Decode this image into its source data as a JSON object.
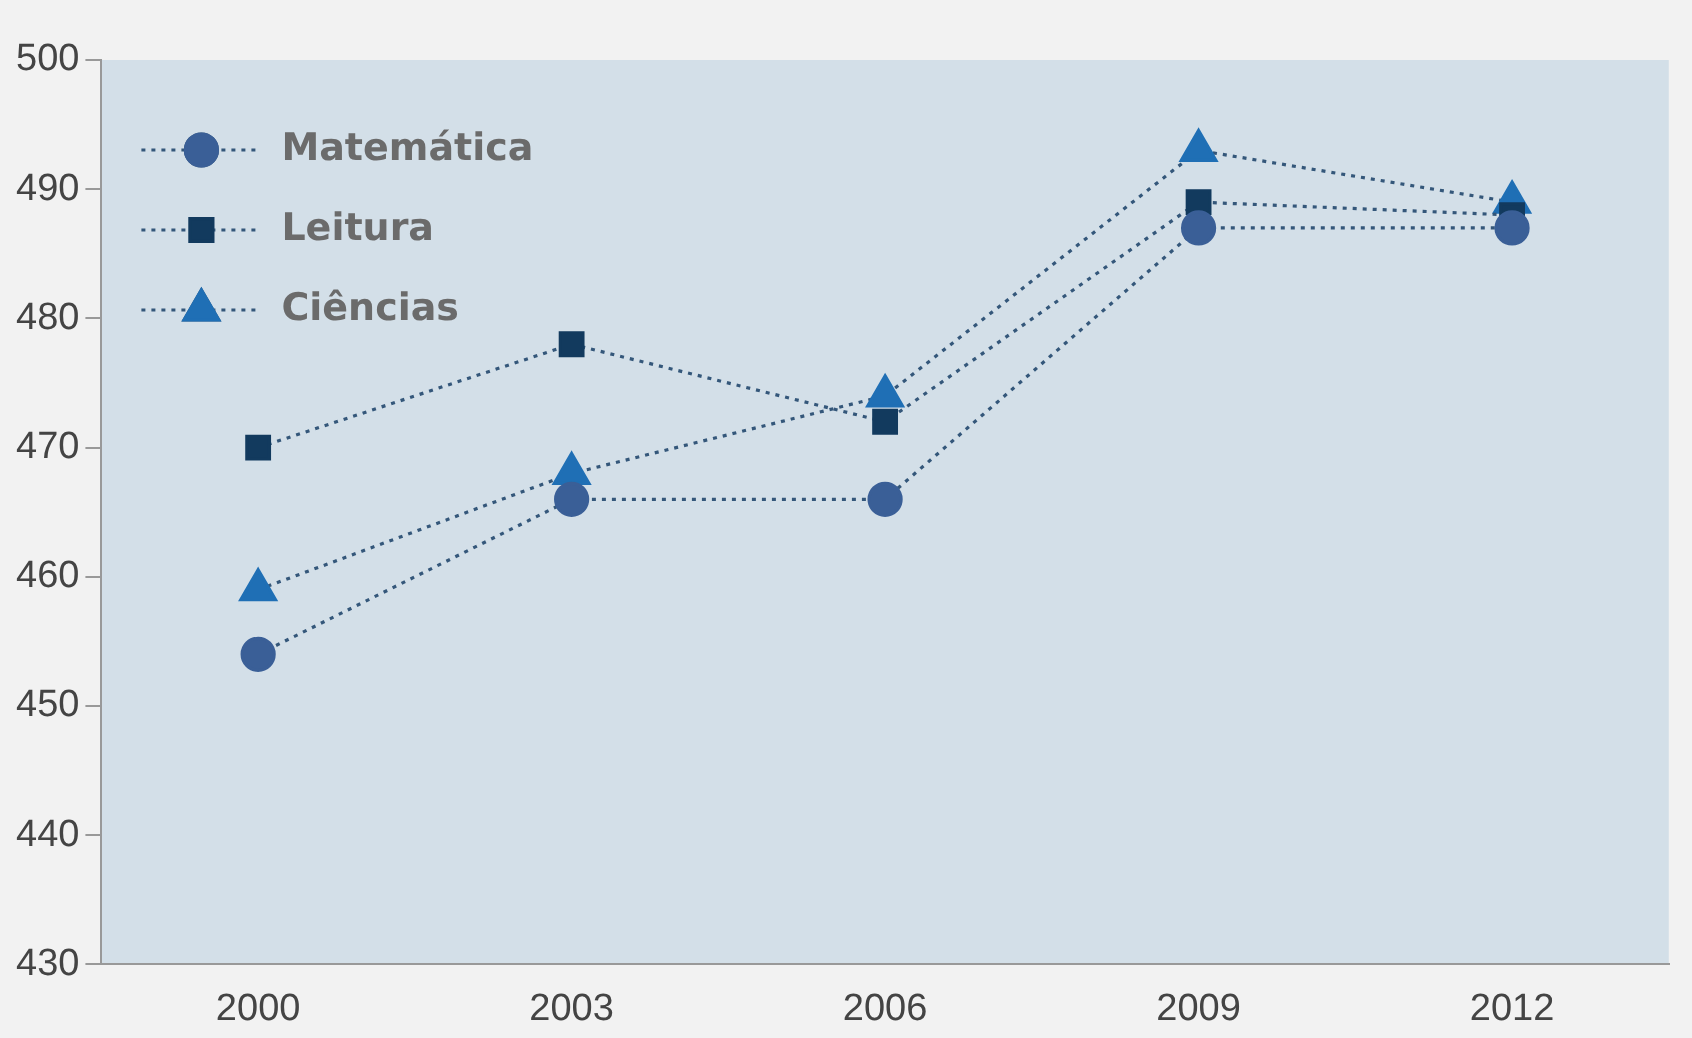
{
  "chart_data": {
    "type": "line",
    "categories": [
      "2000",
      "2003",
      "2006",
      "2009",
      "2012"
    ],
    "series": [
      {
        "name": "Matemática",
        "color": "#3a5f97",
        "marker": "circle",
        "values": [
          454,
          466,
          466,
          487,
          487
        ]
      },
      {
        "name": "Leitura",
        "color": "#123a5e",
        "marker": "square",
        "values": [
          470,
          478,
          472,
          489,
          488
        ]
      },
      {
        "name": "Ciências",
        "color": "#1f6fb5",
        "marker": "triangle",
        "values": [
          459,
          468,
          474,
          493,
          489
        ]
      }
    ],
    "ylim": [
      430,
      500
    ],
    "yticks": [
      430,
      440,
      450,
      460,
      470,
      480,
      490,
      500
    ],
    "grid": false,
    "legend": "top left",
    "line_style": "dotted"
  }
}
